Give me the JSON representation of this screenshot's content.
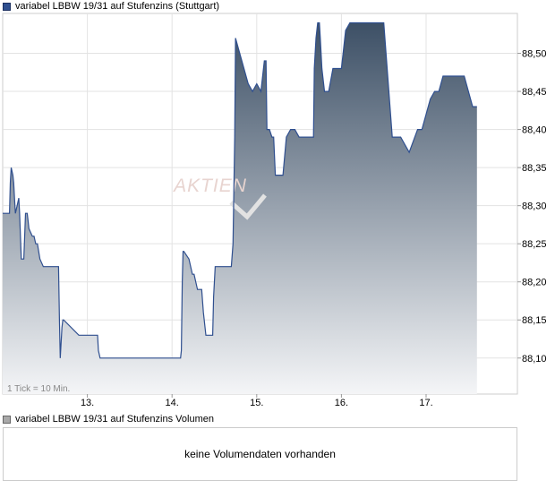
{
  "legend": {
    "price_label": "variabel LBBW 19/31 auf Stufenzins (Stuttgart)",
    "volume_label": "variabel LBBW 19/31 auf Stufenzins Volumen"
  },
  "watermark": "AKTIEN",
  "tick_note": "1 Tick = 10 Min.",
  "volume_message": "keine Volumendaten vorhanden",
  "colors": {
    "line": "#2f4f8f",
    "fill_top": "#3d5066",
    "fill_bottom": "#f4f5f7",
    "grid": "#e3e3e3"
  },
  "chart_data": {
    "type": "area",
    "title": "variabel LBBW 19/31 auf Stufenzins (Stuttgart)",
    "xlabel": "",
    "ylabel": "",
    "x_tick_labels": [
      "13.",
      "14.",
      "15.",
      "16.",
      "17."
    ],
    "y_tick_labels": [
      "88,10",
      "88,15",
      "88,20",
      "88,25",
      "88,30",
      "88,35",
      "88,40",
      "88,45",
      "88,50"
    ],
    "ylim": [
      88.05,
      88.55
    ],
    "grid": true,
    "series": [
      {
        "name": "variabel LBBW 19/31 auf Stufenzins (Stuttgart)",
        "x": [
          0,
          0.08,
          0.09,
          0.1,
          0.12,
          0.13,
          0.14,
          0.15,
          0.17,
          0.19,
          0.2,
          0.22,
          0.25,
          0.27,
          0.29,
          0.3,
          0.31,
          0.35,
          0.37,
          0.39,
          0.41,
          0.44,
          0.48,
          0.5,
          0.52,
          0.54,
          0.56,
          0.59,
          0.61,
          0.66,
          0.67,
          0.68,
          0.7,
          0.71,
          0.72,
          0.9,
          1.12,
          1.13,
          1.15,
          1.16,
          1.17,
          1.22,
          1.26,
          1.28,
          1.3,
          1.35,
          1.4,
          1.6,
          1.9,
          2.05,
          2.1,
          2.11,
          2.12,
          2.13,
          2.14,
          2.2,
          2.22,
          2.24,
          2.26,
          2.3,
          2.33,
          2.35,
          2.37,
          2.4,
          2.42,
          2.45,
          2.48,
          2.49,
          2.51,
          2.55,
          2.61,
          2.67,
          2.7,
          2.72,
          2.74,
          2.75,
          2.9,
          2.95,
          3.0,
          3.05,
          3.07,
          3.09,
          3.1,
          3.11,
          3.12,
          3.15,
          3.18,
          3.2,
          3.22,
          3.25,
          3.29,
          3.3,
          3.31,
          3.35,
          3.4,
          3.45,
          3.5,
          3.55,
          3.63,
          3.65,
          3.67,
          3.68,
          3.7,
          3.72,
          3.74,
          3.75,
          3.77,
          3.8,
          3.85,
          3.9,
          3.95,
          3.97,
          3.99,
          4.0,
          4.02,
          4.05,
          4.1,
          4.15,
          4.5,
          4.6,
          4.62,
          4.65,
          4.7,
          4.8,
          4.9,
          4.95,
          5.0,
          5.05,
          5.1,
          5.15,
          5.2,
          5.25,
          5.3,
          5.35,
          5.4,
          5.45,
          5.5,
          5.55,
          5.6
        ],
        "values": [
          88.29,
          88.29,
          88.33,
          88.35,
          88.34,
          88.33,
          88.31,
          88.29,
          88.3,
          88.31,
          88.29,
          88.23,
          88.23,
          88.29,
          88.29,
          88.28,
          88.27,
          88.26,
          88.26,
          88.25,
          88.25,
          88.23,
          88.22,
          88.22,
          88.22,
          88.22,
          88.22,
          88.22,
          88.22,
          88.22,
          88.15,
          88.1,
          88.14,
          88.15,
          88.15,
          88.13,
          88.13,
          88.11,
          88.1,
          88.1,
          88.1,
          88.1,
          88.1,
          88.1,
          88.1,
          88.1,
          88.1,
          88.1,
          88.1,
          88.1,
          88.1,
          88.11,
          88.2,
          88.24,
          88.24,
          88.23,
          88.22,
          88.21,
          88.21,
          88.19,
          88.19,
          88.19,
          88.16,
          88.13,
          88.13,
          88.13,
          88.13,
          88.18,
          88.22,
          88.22,
          88.22,
          88.22,
          88.22,
          88.25,
          88.39,
          88.52,
          88.46,
          88.45,
          88.46,
          88.45,
          88.47,
          88.49,
          88.49,
          88.49,
          88.4,
          88.4,
          88.39,
          88.39,
          88.34,
          88.34,
          88.34,
          88.34,
          88.34,
          88.39,
          88.4,
          88.4,
          88.39,
          88.39,
          88.39,
          88.39,
          88.39,
          88.48,
          88.52,
          88.54,
          88.54,
          88.52,
          88.48,
          88.45,
          88.45,
          88.48,
          88.48,
          88.48,
          88.48,
          88.48,
          88.5,
          88.53,
          88.54,
          88.54,
          88.54,
          88.39,
          88.39,
          88.39,
          88.39,
          88.37,
          88.4,
          88.4,
          88.42,
          88.44,
          88.45,
          88.45,
          88.47,
          88.47,
          88.47,
          88.47,
          88.47,
          88.47,
          88.45,
          88.43,
          88.43
        ]
      }
    ]
  }
}
